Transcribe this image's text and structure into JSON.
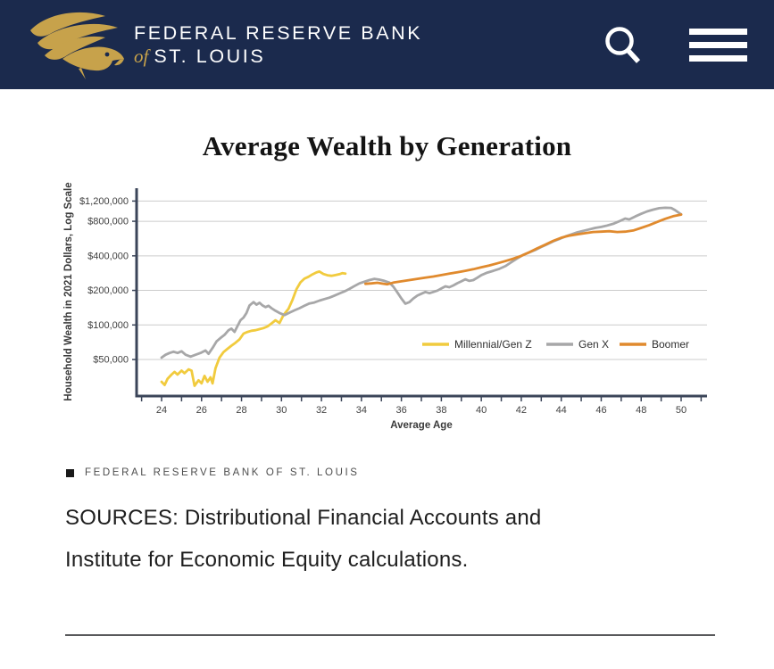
{
  "header": {
    "bank_line1": "FEDERAL RESERVE BANK",
    "bank_of": "of",
    "bank_line2": "ST. LOUIS",
    "background_color": "#1B2A4D",
    "gold_color": "#C7A24B",
    "icons": {
      "logo": "eagle",
      "search": "magnifier",
      "menu": "hamburger"
    }
  },
  "title": "Average Wealth by Generation",
  "chart_data": {
    "type": "line",
    "title": "Average Wealth by Generation",
    "xlabel": "Average Age",
    "ylabel": "Household Wealth in 2021 Dollars, Log Scale",
    "y_scale": "log",
    "grid": "horizontal",
    "legend_position": "inside-lower-right",
    "xlim": [
      22.7,
      51.3
    ],
    "ylim": [
      24000,
      1550000
    ],
    "x_major_ticks": [
      24,
      26,
      28,
      30,
      32,
      34,
      36,
      38,
      40,
      42,
      44,
      46,
      48,
      50
    ],
    "x_minor_ticks": [
      23,
      24,
      25,
      26,
      27,
      28,
      29,
      30,
      31,
      32,
      33,
      34,
      35,
      36,
      37,
      38,
      39,
      40,
      41,
      42,
      43,
      44,
      45,
      46,
      47,
      48,
      49,
      50,
      51
    ],
    "y_ticks": [
      {
        "value": 1200000,
        "label": "$1,200,000"
      },
      {
        "value": 800000,
        "label": "$800,000"
      },
      {
        "value": 400000,
        "label": "$400,000"
      },
      {
        "value": 200000,
        "label": "$200,000"
      },
      {
        "value": 100000,
        "label": "$100,000"
      },
      {
        "value": 50000,
        "label": "$50,000"
      }
    ],
    "colors": {
      "axis": "#3B4559",
      "grid": "#CCCCCC"
    },
    "series": [
      {
        "name": "Millennial/Gen Z",
        "color": "#F1CB3E",
        "points": [
          [
            24.0,
            32000
          ],
          [
            24.15,
            30000
          ],
          [
            24.3,
            34000
          ],
          [
            24.5,
            37000
          ],
          [
            24.65,
            39000
          ],
          [
            24.8,
            37000
          ],
          [
            25.0,
            40000
          ],
          [
            25.15,
            38000
          ],
          [
            25.35,
            41000
          ],
          [
            25.5,
            40000
          ],
          [
            25.65,
            29500
          ],
          [
            25.85,
            33000
          ],
          [
            26.0,
            31000
          ],
          [
            26.15,
            36000
          ],
          [
            26.3,
            32000
          ],
          [
            26.45,
            35000
          ],
          [
            26.55,
            31000
          ],
          [
            26.7,
            42000
          ],
          [
            26.9,
            52000
          ],
          [
            27.1,
            58000
          ],
          [
            27.3,
            62000
          ],
          [
            27.5,
            66000
          ],
          [
            27.7,
            70000
          ],
          [
            27.9,
            75000
          ],
          [
            28.1,
            84000
          ],
          [
            28.3,
            87000
          ],
          [
            28.5,
            89000
          ],
          [
            28.7,
            90000
          ],
          [
            28.9,
            92000
          ],
          [
            29.1,
            94000
          ],
          [
            29.3,
            97000
          ],
          [
            29.5,
            103000
          ],
          [
            29.7,
            110000
          ],
          [
            29.9,
            104000
          ],
          [
            30.1,
            122000
          ],
          [
            30.35,
            138000
          ],
          [
            30.55,
            165000
          ],
          [
            30.75,
            205000
          ],
          [
            30.95,
            235000
          ],
          [
            31.15,
            253000
          ],
          [
            31.35,
            263000
          ],
          [
            31.55,
            276000
          ],
          [
            31.75,
            287000
          ],
          [
            31.9,
            292000
          ],
          [
            32.1,
            278000
          ],
          [
            32.3,
            271000
          ],
          [
            32.5,
            268000
          ],
          [
            32.7,
            272000
          ],
          [
            32.9,
            277000
          ],
          [
            33.05,
            283000
          ],
          [
            33.2,
            280000
          ]
        ]
      },
      {
        "name": "Gen X",
        "color": "#A7A7A8",
        "points": [
          [
            24.0,
            52000
          ],
          [
            24.2,
            55000
          ],
          [
            24.4,
            57000
          ],
          [
            24.6,
            58500
          ],
          [
            24.8,
            57000
          ],
          [
            25.0,
            59000
          ],
          [
            25.2,
            55000
          ],
          [
            25.45,
            53000
          ],
          [
            25.7,
            55000
          ],
          [
            25.95,
            57000
          ],
          [
            26.2,
            60000
          ],
          [
            26.35,
            56000
          ],
          [
            26.55,
            63000
          ],
          [
            26.75,
            72000
          ],
          [
            26.95,
            77000
          ],
          [
            27.15,
            82000
          ],
          [
            27.35,
            90000
          ],
          [
            27.5,
            93000
          ],
          [
            27.65,
            87000
          ],
          [
            27.8,
            98000
          ],
          [
            27.95,
            110000
          ],
          [
            28.1,
            116000
          ],
          [
            28.25,
            127000
          ],
          [
            28.4,
            148000
          ],
          [
            28.6,
            158000
          ],
          [
            28.75,
            150000
          ],
          [
            28.9,
            156000
          ],
          [
            29.05,
            148000
          ],
          [
            29.2,
            143000
          ],
          [
            29.35,
            147000
          ],
          [
            29.5,
            140000
          ],
          [
            29.7,
            133000
          ],
          [
            29.9,
            127000
          ],
          [
            30.15,
            122000
          ],
          [
            30.4,
            128000
          ],
          [
            30.65,
            134000
          ],
          [
            30.9,
            140000
          ],
          [
            31.15,
            147000
          ],
          [
            31.4,
            154000
          ],
          [
            31.65,
            157000
          ],
          [
            31.9,
            163000
          ],
          [
            32.15,
            168000
          ],
          [
            32.4,
            173000
          ],
          [
            32.65,
            180000
          ],
          [
            32.9,
            188000
          ],
          [
            33.15,
            196000
          ],
          [
            33.4,
            206000
          ],
          [
            33.65,
            218000
          ],
          [
            33.9,
            230000
          ],
          [
            34.15,
            238000
          ],
          [
            34.4,
            246000
          ],
          [
            34.65,
            252000
          ],
          [
            34.9,
            248000
          ],
          [
            35.15,
            242000
          ],
          [
            35.4,
            234000
          ],
          [
            35.6,
            215000
          ],
          [
            35.8,
            192000
          ],
          [
            36.0,
            170000
          ],
          [
            36.2,
            153000
          ],
          [
            36.4,
            158000
          ],
          [
            36.6,
            170000
          ],
          [
            36.8,
            180000
          ],
          [
            37.0,
            187000
          ],
          [
            37.2,
            194000
          ],
          [
            37.4,
            189000
          ],
          [
            37.6,
            194000
          ],
          [
            37.8,
            199000
          ],
          [
            38.0,
            208000
          ],
          [
            38.2,
            217000
          ],
          [
            38.4,
            213000
          ],
          [
            38.6,
            221000
          ],
          [
            38.8,
            231000
          ],
          [
            39.0,
            240000
          ],
          [
            39.2,
            250000
          ],
          [
            39.4,
            242000
          ],
          [
            39.6,
            246000
          ],
          [
            39.8,
            258000
          ],
          [
            40.0,
            272000
          ],
          [
            40.3,
            286000
          ],
          [
            40.6,
            296000
          ],
          [
            40.9,
            308000
          ],
          [
            41.2,
            325000
          ],
          [
            41.5,
            352000
          ],
          [
            41.8,
            380000
          ],
          [
            42.1,
            408000
          ],
          [
            42.4,
            428000
          ],
          [
            42.7,
            450000
          ],
          [
            43.0,
            478000
          ],
          [
            43.3,
            505000
          ],
          [
            43.6,
            535000
          ],
          [
            43.9,
            560000
          ],
          [
            44.2,
            590000
          ],
          [
            44.5,
            615000
          ],
          [
            44.8,
            640000
          ],
          [
            45.1,
            660000
          ],
          [
            45.4,
            680000
          ],
          [
            45.7,
            700000
          ],
          [
            46.0,
            715000
          ],
          [
            46.3,
            735000
          ],
          [
            46.6,
            760000
          ],
          [
            46.9,
            800000
          ],
          [
            47.2,
            845000
          ],
          [
            47.4,
            830000
          ],
          [
            47.7,
            880000
          ],
          [
            48.0,
            930000
          ],
          [
            48.3,
            975000
          ],
          [
            48.6,
            1010000
          ],
          [
            48.9,
            1040000
          ],
          [
            49.2,
            1050000
          ],
          [
            49.5,
            1045000
          ],
          [
            49.7,
            1000000
          ],
          [
            50.0,
            920000
          ]
        ]
      },
      {
        "name": "Boomer",
        "color": "#E08A2E",
        "points": [
          [
            34.2,
            228000
          ],
          [
            34.5,
            230000
          ],
          [
            34.8,
            233000
          ],
          [
            35.0,
            230000
          ],
          [
            35.3,
            226000
          ],
          [
            35.6,
            234000
          ],
          [
            36.0,
            240000
          ],
          [
            36.4,
            246000
          ],
          [
            36.8,
            252000
          ],
          [
            37.2,
            258000
          ],
          [
            37.6,
            264000
          ],
          [
            38.0,
            272000
          ],
          [
            38.4,
            280000
          ],
          [
            38.8,
            288000
          ],
          [
            39.2,
            296000
          ],
          [
            39.6,
            306000
          ],
          [
            40.0,
            318000
          ],
          [
            40.4,
            330000
          ],
          [
            40.8,
            344000
          ],
          [
            41.2,
            360000
          ],
          [
            41.6,
            378000
          ],
          [
            42.0,
            400000
          ],
          [
            42.4,
            430000
          ],
          [
            42.8,
            465000
          ],
          [
            43.2,
            500000
          ],
          [
            43.6,
            540000
          ],
          [
            44.0,
            575000
          ],
          [
            44.4,
            600000
          ],
          [
            44.8,
            615000
          ],
          [
            45.2,
            630000
          ],
          [
            45.6,
            645000
          ],
          [
            46.0,
            650000
          ],
          [
            46.4,
            655000
          ],
          [
            46.8,
            645000
          ],
          [
            47.2,
            650000
          ],
          [
            47.6,
            665000
          ],
          [
            48.0,
            700000
          ],
          [
            48.4,
            740000
          ],
          [
            48.8,
            790000
          ],
          [
            49.2,
            840000
          ],
          [
            49.6,
            885000
          ],
          [
            50.0,
            915000
          ]
        ]
      }
    ]
  },
  "attribution": "FEDERAL RESERVE BANK OF ST. LOUIS",
  "sources": "SOURCES: Distributional Financial Accounts and Institute for Economic Equity calculations."
}
